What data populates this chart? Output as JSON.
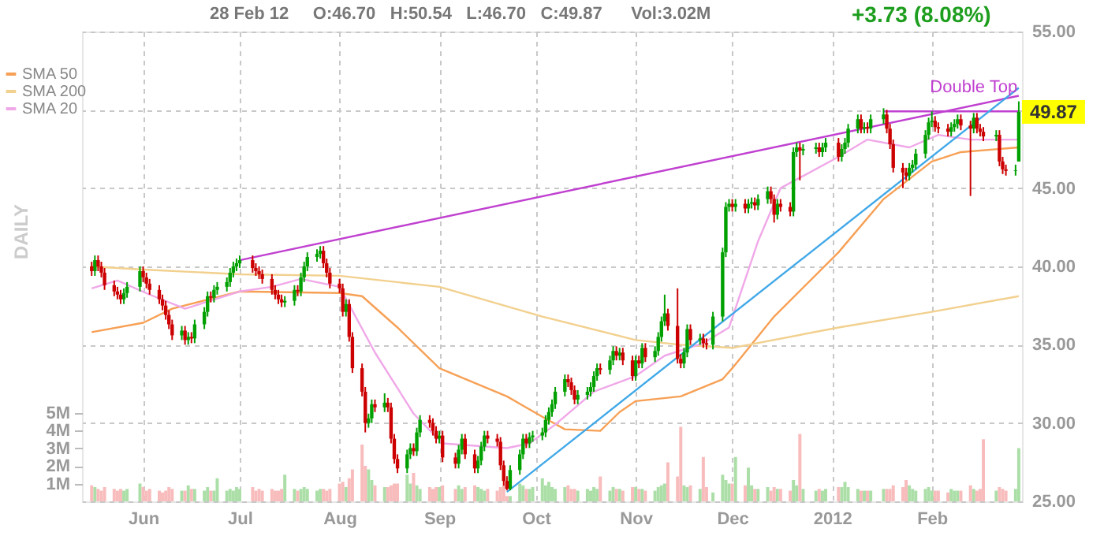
{
  "chart_data": {
    "type": "candlestick",
    "subtitle": "28 Feb 12     O:46.70   H:50.54   L:46.70   C:49.87      Vol:3.02M",
    "annotations": [
      "+3.73 (8.08%)",
      "DAILY",
      {
        "text": "Double Top",
        "x": "2012-02-14",
        "y": 50.9
      },
      {
        "text": "49.87",
        "x": "2012-02-28",
        "y": 49.87
      }
    ],
    "xlim": [
      "2011-05-13",
      "2012-02-29"
    ],
    "xticks": [
      {
        "value": "2011-06-01",
        "label": "Jun"
      },
      {
        "value": "2011-07-01",
        "label": "Jul"
      },
      {
        "value": "2011-08-01",
        "label": "Aug"
      },
      {
        "value": "2011-09-01",
        "label": "Sep"
      },
      {
        "value": "2011-10-01",
        "label": "Oct"
      },
      {
        "value": "2011-11-01",
        "label": "Nov"
      },
      {
        "value": "2011-12-01",
        "label": "Dec"
      },
      {
        "value": "2012-01-01",
        "label": "2012"
      },
      {
        "value": "2012-02-01",
        "label": "Feb"
      }
    ],
    "ylim": [
      25,
      55
    ],
    "yticks": [
      {
        "value": 25,
        "label": "25.00"
      },
      {
        "value": 30,
        "label": "30.00"
      },
      {
        "value": 35,
        "label": "35.00"
      },
      {
        "value": 40,
        "label": "40.00"
      },
      {
        "value": 45,
        "label": "45.00"
      },
      {
        "value": 50,
        "label": null
      },
      {
        "value": 55,
        "label": "55.00"
      }
    ],
    "y2lim": [
      0,
      26.5
    ],
    "y2ticks": [
      {
        "value": 1,
        "label": "1M"
      },
      {
        "value": 2,
        "label": "2M"
      },
      {
        "value": 3,
        "label": "3M"
      },
      {
        "value": 4,
        "label": "4M"
      },
      {
        "value": 5,
        "label": "5M"
      }
    ],
    "grid": true,
    "legend": "top left",
    "series": [
      {
        "type": "bar",
        "axis": "y2",
        "color": "#acdfa8",
        "x": [
          "2011-05-17",
          "2011-05-26",
          "2011-05-27",
          "2011-05-31",
          "2011-06-13",
          "2011-06-15",
          "2011-06-17",
          "2011-06-20",
          "2011-06-21",
          "2011-06-23",
          "2011-06-24",
          "2011-06-27",
          "2011-06-28",
          "2011-06-29",
          "2011-06-30",
          "2011-07-01",
          "2011-07-15",
          "2011-07-18",
          "2011-07-20",
          "2011-07-21",
          "2011-07-22",
          "2011-07-25",
          "2011-07-26",
          "2011-08-03",
          "2011-08-10",
          "2011-08-11",
          "2011-08-15",
          "2011-08-22",
          "2011-08-23",
          "2011-08-25",
          "2011-08-26",
          "2011-09-01",
          "2011-09-07",
          "2011-09-08",
          "2011-09-13",
          "2011-09-14",
          "2011-09-15",
          "2011-09-23",
          "2011-09-26",
          "2011-09-27",
          "2011-09-29",
          "2011-09-30",
          "2011-10-03",
          "2011-10-04",
          "2011-10-05",
          "2011-10-06",
          "2011-10-07",
          "2011-10-10",
          "2011-10-14",
          "2011-10-17",
          "2011-10-18",
          "2011-10-19",
          "2011-10-20",
          "2011-10-24",
          "2011-10-25",
          "2011-10-27",
          "2011-11-01",
          "2011-11-03",
          "2011-11-07",
          "2011-11-08",
          "2011-11-09",
          "2011-11-10",
          "2011-11-16",
          "2011-11-17",
          "2011-11-21",
          "2011-11-25",
          "2011-11-28",
          "2011-11-29",
          "2011-11-30",
          "2011-12-02",
          "2011-12-06",
          "2011-12-07",
          "2011-12-09",
          "2011-12-12",
          "2011-12-15",
          "2011-12-20",
          "2011-12-21",
          "2011-12-23",
          "2011-12-27",
          "2011-12-29",
          "2011-12-30",
          "2012-01-04",
          "2012-01-05",
          "2012-01-06",
          "2012-01-09",
          "2012-01-11",
          "2012-01-13",
          "2012-01-17",
          "2012-01-25",
          "2012-01-26",
          "2012-01-27",
          "2012-01-30",
          "2012-01-31",
          "2012-02-01",
          "2012-02-07",
          "2012-02-08",
          "2012-02-09",
          "2012-02-14",
          "2012-02-21",
          "2012-02-27",
          "2012-02-28"
        ],
        "values": [
          0.8,
          0.6,
          0.7,
          1.0,
          0.6,
          0.9,
          0.7,
          0.6,
          0.8,
          0.6,
          1.3,
          0.6,
          0.7,
          0.6,
          0.8,
          0.7,
          1.5,
          0.7,
          0.7,
          0.8,
          0.7,
          0.6,
          0.7,
          0.8,
          1.8,
          1.2,
          0.8,
          1.5,
          1.0,
          0.9,
          0.7,
          0.8,
          0.9,
          0.7,
          0.8,
          0.7,
          0.6,
          0.3,
          1.0,
          0.9,
          0.7,
          0.8,
          1.3,
          0.9,
          1.1,
          0.8,
          0.7,
          0.8,
          0.6,
          0.7,
          0.6,
          0.8,
          0.7,
          0.6,
          0.8,
          0.7,
          0.8,
          0.7,
          0.6,
          0.8,
          0.9,
          1.0,
          0.9,
          0.8,
          0.7,
          0.5,
          1.5,
          1.2,
          1.0,
          2.5,
          1.9,
          0.9,
          0.7,
          0.8,
          0.7,
          1.2,
          0.9,
          0.7,
          0.6,
          0.6,
          0.7,
          0.8,
          1.1,
          0.8,
          0.7,
          0.6,
          0.6,
          0.7,
          0.9,
          0.7,
          0.6,
          0.7,
          0.8,
          0.6,
          0.7,
          0.6,
          0.6,
          0.7,
          0.6,
          0.7,
          3.0
        ]
      },
      {
        "type": "bar",
        "axis": "y2",
        "color": "#f8bcbc",
        "x": [
          "2011-05-16",
          "2011-05-18",
          "2011-05-19",
          "2011-05-20",
          "2011-05-23",
          "2011-05-24",
          "2011-05-25",
          "2011-06-01",
          "2011-06-02",
          "2011-06-03",
          "2011-06-06",
          "2011-06-07",
          "2011-06-08",
          "2011-06-09",
          "2011-06-10",
          "2011-06-14",
          "2011-06-16",
          "2011-06-22",
          "2011-07-05",
          "2011-07-06",
          "2011-07-07",
          "2011-07-08",
          "2011-07-11",
          "2011-07-12",
          "2011-07-13",
          "2011-07-14",
          "2011-07-19",
          "2011-07-27",
          "2011-07-28",
          "2011-07-29",
          "2011-08-01",
          "2011-08-02",
          "2011-08-04",
          "2011-08-05",
          "2011-08-08",
          "2011-08-09",
          "2011-08-12",
          "2011-08-16",
          "2011-08-17",
          "2011-08-18",
          "2011-08-19",
          "2011-08-24",
          "2011-08-29",
          "2011-08-30",
          "2011-08-31",
          "2011-09-02",
          "2011-09-06",
          "2011-09-09",
          "2011-09-12",
          "2011-09-16",
          "2011-09-19",
          "2011-09-20",
          "2011-09-21",
          "2011-09-22",
          "2011-09-28",
          "2011-10-11",
          "2011-10-12",
          "2011-10-13",
          "2011-10-21",
          "2011-10-26",
          "2011-10-28",
          "2011-10-31",
          "2011-11-02",
          "2011-11-04",
          "2011-11-11",
          "2011-11-14",
          "2011-11-15",
          "2011-11-18",
          "2011-11-22",
          "2011-11-23",
          "2011-12-01",
          "2011-12-05",
          "2011-12-08",
          "2011-12-13",
          "2011-12-14",
          "2011-12-16",
          "2011-12-19",
          "2011-12-22",
          "2011-12-28",
          "2012-01-03",
          "2012-01-10",
          "2012-01-12",
          "2012-01-18",
          "2012-01-19",
          "2012-01-20",
          "2012-01-23",
          "2012-01-24",
          "2012-02-02",
          "2012-02-03",
          "2012-02-06",
          "2012-02-10",
          "2012-02-13",
          "2012-02-15",
          "2012-02-16",
          "2012-02-17",
          "2012-02-22",
          "2012-02-23",
          "2012-02-24"
        ],
        "values": [
          0.9,
          0.7,
          0.6,
          0.8,
          0.7,
          0.6,
          0.7,
          0.8,
          0.6,
          0.7,
          0.6,
          0.5,
          0.6,
          0.8,
          0.7,
          0.6,
          0.7,
          0.6,
          0.8,
          0.6,
          0.7,
          0.6,
          0.7,
          0.6,
          0.6,
          0.7,
          0.6,
          0.7,
          0.6,
          0.7,
          1.0,
          1.1,
          1.3,
          1.8,
          3.2,
          2.0,
          0.9,
          0.8,
          0.9,
          1.0,
          1.0,
          1.6,
          0.8,
          0.7,
          0.8,
          0.9,
          0.7,
          0.8,
          0.9,
          0.7,
          0.6,
          0.8,
          0.9,
          0.3,
          0.7,
          0.9,
          0.7,
          0.7,
          1.4,
          0.7,
          0.6,
          0.8,
          0.7,
          0.6,
          2.2,
          1.4,
          4.2,
          0.9,
          2.5,
          0.8,
          1.0,
          0.9,
          0.7,
          0.6,
          0.8,
          0.7,
          0.6,
          3.8,
          0.7,
          0.8,
          0.6,
          0.6,
          0.7,
          0.7,
          0.9,
          0.8,
          1.2,
          0.6,
          0.6,
          0.5,
          0.6,
          0.9,
          0.6,
          0.7,
          3.5,
          0.8,
          0.7,
          0.6
        ]
      },
      {
        "type": "line",
        "name": "SMA 50",
        "color": "#f7a055",
        "x": [
          "2011-05-16",
          "2011-06-01",
          "2011-06-10",
          "2011-07-01",
          "2011-08-01",
          "2011-08-08",
          "2011-08-19",
          "2011-09-01",
          "2011-09-22",
          "2011-10-03",
          "2011-10-10",
          "2011-10-21",
          "2011-10-27",
          "2011-11-01",
          "2011-11-15",
          "2011-11-28",
          "2011-12-01",
          "2011-12-14",
          "2012-01-03",
          "2012-01-17",
          "2012-02-01",
          "2012-02-10",
          "2012-02-28"
        ],
        "values": [
          35.8,
          36.4,
          37.3,
          38.4,
          38.3,
          38.1,
          36.1,
          33.5,
          31.7,
          30.4,
          29.6,
          29.5,
          30.7,
          31.4,
          31.7,
          32.8,
          33.5,
          36.8,
          40.9,
          44.3,
          46.7,
          47.3,
          47.6
        ]
      },
      {
        "type": "line",
        "name": "SMA 200",
        "color": "#f2d08e",
        "x": [
          "2011-05-16",
          "2011-06-01",
          "2011-07-01",
          "2011-08-01",
          "2011-09-01",
          "2011-10-03",
          "2011-11-01",
          "2011-11-15",
          "2011-12-01",
          "2012-01-03",
          "2012-02-01",
          "2012-02-28"
        ],
        "values": [
          40.0,
          39.8,
          39.5,
          39.4,
          38.7,
          36.8,
          35.3,
          35.0,
          34.8,
          36.1,
          37.1,
          38.1
        ]
      },
      {
        "type": "line",
        "name": "SMA 20",
        "color": "#f0a8e8",
        "x": [
          "2011-05-16",
          "2011-05-24",
          "2011-06-03",
          "2011-06-14",
          "2011-07-01",
          "2011-07-11",
          "2011-07-20",
          "2011-08-01",
          "2011-08-12",
          "2011-08-24",
          "2011-09-02",
          "2011-09-22",
          "2011-09-29",
          "2011-10-07",
          "2011-10-19",
          "2011-11-01",
          "2011-11-10",
          "2011-11-22",
          "2011-11-30",
          "2011-12-09",
          "2011-12-16",
          "2012-01-03",
          "2012-01-12",
          "2012-01-25",
          "2012-02-03",
          "2012-02-13",
          "2012-02-28"
        ],
        "values": [
          38.6,
          39.1,
          38.2,
          37.3,
          38.4,
          38.7,
          39.2,
          38.7,
          34.5,
          30.6,
          28.7,
          28.4,
          28.7,
          29.9,
          32.0,
          33.0,
          34.3,
          35.1,
          36.1,
          41.6,
          45.0,
          47.0,
          48.1,
          47.6,
          48.4,
          48.1,
          48.1
        ]
      },
      {
        "type": "line",
        "color": "#c040d0",
        "x": [
          "2011-07-01",
          "2012-02-28"
        ],
        "values": [
          40.4,
          50.9
        ]
      },
      {
        "type": "line",
        "color": "#c040d0",
        "x": [
          "2012-01-17",
          "2012-02-28"
        ],
        "values": [
          49.9,
          49.9
        ]
      },
      {
        "type": "line",
        "color": "#40a8e8",
        "x": [
          "2011-09-22",
          "2012-02-28"
        ],
        "values": [
          25.6,
          51.4
        ]
      },
      {
        "color": "#00a000",
        "x": [
          "2011-05-17",
          "2011-05-26",
          "2011-05-27",
          "2011-05-31",
          "2011-06-13",
          "2011-06-15",
          "2011-06-17",
          "2011-06-20",
          "2011-06-21",
          "2011-06-23",
          "2011-06-24",
          "2011-06-27",
          "2011-06-28",
          "2011-06-29",
          "2011-06-30",
          "2011-07-01",
          "2011-07-15",
          "2011-07-18",
          "2011-07-20",
          "2011-07-21",
          "2011-07-22",
          "2011-07-25",
          "2011-07-26",
          "2011-08-03",
          "2011-08-10",
          "2011-08-11",
          "2011-08-15",
          "2011-08-22",
          "2011-08-23",
          "2011-08-25",
          "2011-08-26",
          "2011-09-01",
          "2011-09-07",
          "2011-09-08",
          "2011-09-13",
          "2011-09-14",
          "2011-09-15",
          "2011-09-23",
          "2011-09-26",
          "2011-09-27",
          "2011-09-29",
          "2011-09-30",
          "2011-10-03",
          "2011-10-04",
          "2011-10-05",
          "2011-10-06",
          "2011-10-07",
          "2011-10-10",
          "2011-10-14",
          "2011-10-17",
          "2011-10-18",
          "2011-10-19",
          "2011-10-20",
          "2011-10-24",
          "2011-10-25",
          "2011-10-27",
          "2011-11-01",
          "2011-11-03",
          "2011-11-07",
          "2011-11-08",
          "2011-11-09",
          "2011-11-10",
          "2011-11-16",
          "2011-11-17",
          "2011-11-21",
          "2011-11-25",
          "2011-11-28",
          "2011-11-29",
          "2011-11-30",
          "2011-12-02",
          "2011-12-06",
          "2011-12-07",
          "2011-12-09",
          "2011-12-12",
          "2011-12-15",
          "2011-12-20",
          "2011-12-21",
          "2011-12-23",
          "2011-12-27",
          "2011-12-29",
          "2011-12-30",
          "2012-01-04",
          "2012-01-05",
          "2012-01-06",
          "2012-01-09",
          "2012-01-11",
          "2012-01-13",
          "2012-01-17",
          "2012-01-25",
          "2012-01-26",
          "2012-01-27",
          "2012-01-30",
          "2012-01-31",
          "2012-02-01",
          "2012-02-07",
          "2012-02-08",
          "2012-02-09",
          "2012-02-14",
          "2012-02-21",
          "2012-02-27",
          "2012-02-28"
        ],
        "ohlc": [
          [
            39.7,
            40.7,
            39.4,
            40.4
          ],
          [
            37.9,
            38.6,
            37.6,
            38.3
          ],
          [
            38.3,
            39.0,
            38.0,
            38.7
          ],
          [
            38.7,
            40.0,
            38.4,
            39.7
          ],
          [
            35.6,
            36.2,
            35.3,
            35.9
          ],
          [
            35.3,
            35.8,
            35.0,
            35.5
          ],
          [
            35.4,
            36.6,
            35.1,
            36.3
          ],
          [
            36.3,
            37.4,
            36.0,
            37.1
          ],
          [
            37.1,
            38.4,
            36.8,
            38.1
          ],
          [
            38.0,
            38.8,
            37.7,
            38.5
          ],
          [
            38.5,
            39.0,
            38.2,
            38.7
          ],
          [
            38.7,
            39.3,
            38.4,
            39.0
          ],
          [
            39.0,
            39.9,
            38.7,
            39.6
          ],
          [
            39.6,
            40.3,
            39.3,
            40.0
          ],
          [
            40.0,
            40.5,
            39.7,
            40.2
          ],
          [
            40.2,
            40.7,
            39.9,
            40.4
          ],
          [
            37.7,
            38.1,
            37.4,
            37.8
          ],
          [
            37.8,
            38.8,
            37.5,
            38.5
          ],
          [
            38.4,
            39.6,
            38.1,
            39.3
          ],
          [
            39.3,
            40.3,
            39.0,
            40.0
          ],
          [
            40.0,
            40.9,
            39.7,
            40.6
          ],
          [
            40.6,
            41.1,
            40.3,
            40.8
          ],
          [
            40.8,
            41.3,
            40.5,
            41.0
          ],
          [
            37.1,
            37.9,
            36.8,
            37.6
          ],
          [
            30.0,
            30.6,
            29.7,
            30.3
          ],
          [
            30.3,
            31.5,
            30.0,
            31.2
          ],
          [
            31.0,
            31.9,
            30.7,
            31.3
          ],
          [
            27.1,
            28.3,
            26.8,
            28.0
          ],
          [
            28.0,
            28.7,
            27.7,
            28.4
          ],
          [
            28.2,
            29.7,
            27.9,
            29.4
          ],
          [
            29.4,
            30.5,
            29.1,
            30.2
          ],
          [
            29.0,
            29.5,
            28.7,
            29.2
          ],
          [
            27.4,
            28.6,
            27.1,
            28.3
          ],
          [
            28.3,
            29.3,
            28.0,
            29.0
          ],
          [
            27.1,
            27.9,
            26.8,
            27.6
          ],
          [
            27.6,
            28.8,
            27.3,
            28.5
          ],
          [
            28.5,
            29.5,
            28.2,
            29.2
          ],
          [
            25.8,
            27.3,
            25.7,
            27.0
          ],
          [
            27.0,
            28.3,
            26.7,
            28.0
          ],
          [
            28.0,
            29.3,
            27.7,
            29.0
          ],
          [
            28.7,
            29.4,
            28.4,
            29.1
          ],
          [
            29.1,
            29.5,
            28.8,
            29.2
          ],
          [
            29.2,
            29.7,
            28.9,
            29.4
          ],
          [
            29.4,
            30.5,
            29.1,
            30.2
          ],
          [
            30.2,
            31.0,
            29.9,
            30.7
          ],
          [
            30.7,
            31.5,
            30.4,
            31.2
          ],
          [
            31.2,
            32.3,
            30.9,
            32.0
          ],
          [
            32.0,
            33.1,
            31.7,
            32.8
          ],
          [
            31.5,
            32.1,
            31.2,
            31.8
          ],
          [
            31.8,
            32.3,
            31.5,
            32.0
          ],
          [
            32.0,
            32.6,
            31.7,
            32.3
          ],
          [
            32.3,
            33.3,
            32.0,
            33.0
          ],
          [
            33.0,
            33.8,
            32.7,
            33.5
          ],
          [
            33.4,
            34.3,
            33.1,
            34.0
          ],
          [
            34.0,
            34.9,
            33.7,
            34.6
          ],
          [
            34.3,
            34.8,
            34.0,
            34.5
          ],
          [
            33.0,
            34.3,
            32.7,
            34.0
          ],
          [
            33.8,
            35.1,
            33.5,
            34.8
          ],
          [
            34.2,
            34.9,
            33.9,
            34.6
          ],
          [
            34.6,
            35.8,
            34.3,
            35.5
          ],
          [
            35.5,
            36.8,
            35.2,
            36.5
          ],
          [
            36.5,
            38.2,
            36.2,
            37.0
          ],
          [
            33.8,
            34.8,
            33.5,
            34.5
          ],
          [
            34.5,
            36.3,
            34.2,
            36.0
          ],
          [
            35.3,
            35.7,
            35.0,
            35.4
          ],
          [
            35.0,
            37.1,
            34.7,
            36.8
          ],
          [
            36.8,
            41.2,
            36.5,
            40.9
          ],
          [
            40.9,
            44.1,
            40.6,
            43.8
          ],
          [
            43.8,
            44.3,
            43.5,
            44.0
          ],
          [
            43.8,
            44.3,
            43.5,
            44.0
          ],
          [
            43.7,
            44.3,
            43.4,
            44.0
          ],
          [
            44.0,
            44.4,
            43.7,
            44.1
          ],
          [
            43.9,
            44.6,
            43.6,
            44.3
          ],
          [
            44.3,
            45.1,
            44.0,
            44.8
          ],
          [
            43.3,
            44.3,
            43.0,
            44.0
          ],
          [
            43.5,
            47.6,
            43.2,
            47.3
          ],
          [
            47.3,
            47.9,
            47.0,
            47.6
          ],
          [
            47.4,
            47.8,
            47.1,
            47.5
          ],
          [
            47.5,
            47.9,
            47.2,
            47.6
          ],
          [
            47.3,
            47.9,
            47.0,
            47.6
          ],
          [
            47.6,
            48.2,
            47.3,
            47.9
          ],
          [
            47.0,
            47.8,
            46.7,
            47.5
          ],
          [
            47.5,
            48.2,
            47.2,
            47.9
          ],
          [
            47.9,
            49.1,
            47.6,
            48.8
          ],
          [
            48.8,
            49.7,
            48.5,
            49.4
          ],
          [
            48.8,
            49.2,
            48.5,
            48.9
          ],
          [
            48.8,
            49.7,
            48.5,
            49.4
          ],
          [
            49.4,
            50.1,
            49.1,
            49.7
          ],
          [
            45.8,
            46.6,
            45.5,
            46.3
          ],
          [
            46.3,
            46.8,
            46.0,
            46.5
          ],
          [
            46.5,
            47.5,
            46.2,
            47.2
          ],
          [
            47.2,
            48.7,
            46.9,
            48.4
          ],
          [
            48.4,
            49.5,
            48.1,
            49.2
          ],
          [
            49.2,
            49.9,
            48.9,
            49.3
          ],
          [
            48.6,
            49.2,
            48.3,
            48.9
          ],
          [
            48.9,
            49.4,
            48.6,
            49.1
          ],
          [
            49.1,
            49.7,
            48.8,
            49.4
          ],
          [
            48.8,
            49.8,
            48.5,
            49.5
          ],
          [
            48.3,
            48.7,
            48.0,
            48.4
          ],
          [
            46.1,
            46.5,
            45.8,
            46.14
          ],
          [
            46.7,
            50.54,
            46.7,
            49.87
          ]
        ]
      },
      {
        "color": "#cc0000",
        "x": [
          "2011-05-16",
          "2011-05-18",
          "2011-05-19",
          "2011-05-20",
          "2011-05-23",
          "2011-05-24",
          "2011-05-25",
          "2011-06-01",
          "2011-06-02",
          "2011-06-03",
          "2011-06-06",
          "2011-06-07",
          "2011-06-08",
          "2011-06-09",
          "2011-06-10",
          "2011-06-14",
          "2011-06-16",
          "2011-06-22",
          "2011-07-05",
          "2011-07-06",
          "2011-07-07",
          "2011-07-08",
          "2011-07-11",
          "2011-07-12",
          "2011-07-13",
          "2011-07-14",
          "2011-07-19",
          "2011-07-27",
          "2011-07-28",
          "2011-07-29",
          "2011-08-01",
          "2011-08-02",
          "2011-08-04",
          "2011-08-05",
          "2011-08-08",
          "2011-08-09",
          "2011-08-12",
          "2011-08-16",
          "2011-08-17",
          "2011-08-18",
          "2011-08-19",
          "2011-08-24",
          "2011-08-29",
          "2011-08-30",
          "2011-08-31",
          "2011-09-02",
          "2011-09-06",
          "2011-09-09",
          "2011-09-12",
          "2011-09-16",
          "2011-09-19",
          "2011-09-20",
          "2011-09-21",
          "2011-09-22",
          "2011-09-28",
          "2011-10-11",
          "2011-10-12",
          "2011-10-13",
          "2011-10-21",
          "2011-10-26",
          "2011-10-28",
          "2011-10-31",
          "2011-11-02",
          "2011-11-04",
          "2011-11-11",
          "2011-11-14",
          "2011-11-15",
          "2011-11-18",
          "2011-11-22",
          "2011-11-23",
          "2011-12-01",
          "2011-12-05",
          "2011-12-08",
          "2011-12-13",
          "2011-12-14",
          "2011-12-16",
          "2011-12-19",
          "2011-12-22",
          "2011-12-28",
          "2012-01-03",
          "2012-01-10",
          "2012-01-12",
          "2012-01-18",
          "2012-01-19",
          "2012-01-20",
          "2012-01-23",
          "2012-01-24",
          "2012-02-02",
          "2012-02-03",
          "2012-02-06",
          "2012-02-10",
          "2012-02-13",
          "2012-02-15",
          "2012-02-16",
          "2012-02-17",
          "2012-02-22",
          "2012-02-23",
          "2012-02-24"
        ],
        "ohlc": [
          [
            40.0,
            40.3,
            39.4,
            39.7
          ],
          [
            40.4,
            40.7,
            39.7,
            40.0
          ],
          [
            40.0,
            40.3,
            39.3,
            39.6
          ],
          [
            39.6,
            39.9,
            38.5,
            38.8
          ],
          [
            38.8,
            39.1,
            38.1,
            38.4
          ],
          [
            38.4,
            38.7,
            37.9,
            38.2
          ],
          [
            38.2,
            38.5,
            37.6,
            37.9
          ],
          [
            39.7,
            40.0,
            39.0,
            39.3
          ],
          [
            39.3,
            39.6,
            38.6,
            38.9
          ],
          [
            38.9,
            39.2,
            38.2,
            38.5
          ],
          [
            38.5,
            38.8,
            37.6,
            37.9
          ],
          [
            37.9,
            38.2,
            37.2,
            37.5
          ],
          [
            37.5,
            37.8,
            36.6,
            36.9
          ],
          [
            36.9,
            37.2,
            36.0,
            36.3
          ],
          [
            36.3,
            36.6,
            35.3,
            35.6
          ],
          [
            35.9,
            36.2,
            35.0,
            35.3
          ],
          [
            35.5,
            35.8,
            35.1,
            35.4
          ],
          [
            38.1,
            38.4,
            37.7,
            38.0
          ],
          [
            40.4,
            40.7,
            39.6,
            39.9
          ],
          [
            39.9,
            40.2,
            39.4,
            39.7
          ],
          [
            39.7,
            40.0,
            39.2,
            39.5
          ],
          [
            39.5,
            39.8,
            38.9,
            39.2
          ],
          [
            39.2,
            39.5,
            38.2,
            38.5
          ],
          [
            38.5,
            38.8,
            37.9,
            38.2
          ],
          [
            38.2,
            38.5,
            37.6,
            37.9
          ],
          [
            37.9,
            38.2,
            37.4,
            37.7
          ],
          [
            38.5,
            38.8,
            38.1,
            38.4
          ],
          [
            41.0,
            41.3,
            39.9,
            40.2
          ],
          [
            40.2,
            40.5,
            39.3,
            39.6
          ],
          [
            39.6,
            39.9,
            38.6,
            38.9
          ],
          [
            38.9,
            39.2,
            38.3,
            38.6
          ],
          [
            38.6,
            38.9,
            36.8,
            37.1
          ],
          [
            37.6,
            37.9,
            35.2,
            35.5
          ],
          [
            35.5,
            35.8,
            33.2,
            33.5
          ],
          [
            33.5,
            33.8,
            31.7,
            32.0
          ],
          [
            32.0,
            32.3,
            29.4,
            30.0
          ],
          [
            31.2,
            31.5,
            30.7,
            31.0
          ],
          [
            31.3,
            31.6,
            30.7,
            31.0
          ],
          [
            31.0,
            31.3,
            28.7,
            29.0
          ],
          [
            29.0,
            29.3,
            27.4,
            27.7
          ],
          [
            27.7,
            28.0,
            26.8,
            27.1
          ],
          [
            28.4,
            28.7,
            27.9,
            28.2
          ],
          [
            30.2,
            30.5,
            29.7,
            30.0
          ],
          [
            30.0,
            30.3,
            29.2,
            29.5
          ],
          [
            29.5,
            29.8,
            28.7,
            29.0
          ],
          [
            29.2,
            29.5,
            27.5,
            27.8
          ],
          [
            27.8,
            28.1,
            27.1,
            27.4
          ],
          [
            29.0,
            29.3,
            27.7,
            28.0
          ],
          [
            28.0,
            28.3,
            26.8,
            27.1
          ],
          [
            29.2,
            29.5,
            28.7,
            29.0
          ],
          [
            29.0,
            29.3,
            28.5,
            28.8
          ],
          [
            28.8,
            29.1,
            27.0,
            27.3
          ],
          [
            27.3,
            27.6,
            26.0,
            26.3
          ],
          [
            26.3,
            26.6,
            25.7,
            25.8
          ],
          [
            29.0,
            29.3,
            28.4,
            28.7
          ],
          [
            32.8,
            33.1,
            32.3,
            32.6
          ],
          [
            32.6,
            32.9,
            31.8,
            32.1
          ],
          [
            32.1,
            32.4,
            31.2,
            31.5
          ],
          [
            33.5,
            33.8,
            33.1,
            33.4
          ],
          [
            34.6,
            34.9,
            34.0,
            34.3
          ],
          [
            34.5,
            34.8,
            33.7,
            34.0
          ],
          [
            34.0,
            34.3,
            32.7,
            33.0
          ],
          [
            34.0,
            34.3,
            33.5,
            33.8
          ],
          [
            34.8,
            35.1,
            33.9,
            34.2
          ],
          [
            37.0,
            37.3,
            35.9,
            36.2
          ],
          [
            36.2,
            38.6,
            33.8,
            34.1
          ],
          [
            34.1,
            34.4,
            33.5,
            33.8
          ],
          [
            36.0,
            36.3,
            35.0,
            35.3
          ],
          [
            35.4,
            35.7,
            34.8,
            35.1
          ],
          [
            35.1,
            35.4,
            34.7,
            35.0
          ],
          [
            44.0,
            44.3,
            43.5,
            43.8
          ],
          [
            44.0,
            44.3,
            43.4,
            43.7
          ],
          [
            44.1,
            44.4,
            43.6,
            43.9
          ],
          [
            44.8,
            45.1,
            44.0,
            44.3
          ],
          [
            44.3,
            44.6,
            42.8,
            43.3
          ],
          [
            44.0,
            44.3,
            43.5,
            43.8
          ],
          [
            43.8,
            44.1,
            43.2,
            43.5
          ],
          [
            47.6,
            47.9,
            45.5,
            47.4
          ],
          [
            47.6,
            47.9,
            47.0,
            47.3
          ],
          [
            47.9,
            48.2,
            46.7,
            47.0
          ],
          [
            49.4,
            49.7,
            48.5,
            48.8
          ],
          [
            48.9,
            49.2,
            48.5,
            48.8
          ],
          [
            49.7,
            50.0,
            48.5,
            48.8
          ],
          [
            48.8,
            49.1,
            47.5,
            47.8
          ],
          [
            47.8,
            48.1,
            46.0,
            46.3
          ],
          [
            46.3,
            46.6,
            45.0,
            46.0
          ],
          [
            46.0,
            46.3,
            45.5,
            45.8
          ],
          [
            49.3,
            49.6,
            48.6,
            48.9
          ],
          [
            48.9,
            49.2,
            48.5,
            48.8
          ],
          [
            48.8,
            49.1,
            48.3,
            48.6
          ],
          [
            49.4,
            49.7,
            48.7,
            49.0
          ],
          [
            49.0,
            49.3,
            44.5,
            48.8
          ],
          [
            49.5,
            49.8,
            48.5,
            48.8
          ],
          [
            48.8,
            49.1,
            48.3,
            48.6
          ],
          [
            48.6,
            48.9,
            48.0,
            48.3
          ],
          [
            48.4,
            48.7,
            46.4,
            46.7
          ],
          [
            46.7,
            47.0,
            45.9,
            46.2
          ],
          [
            46.2,
            46.5,
            45.8,
            46.1
          ]
        ]
      }
    ]
  }
}
